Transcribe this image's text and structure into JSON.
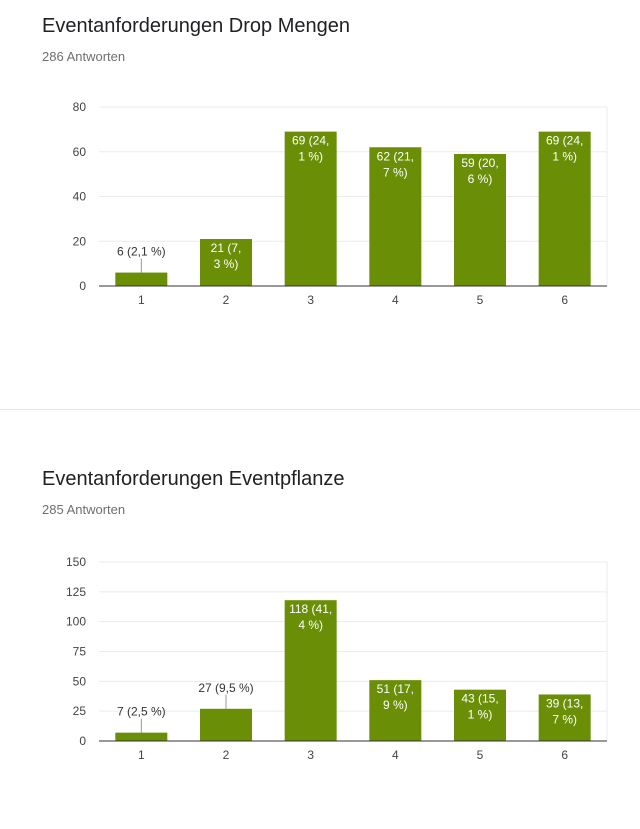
{
  "charts": [
    {
      "title": "Eventanforderungen Drop Mengen",
      "responses": "286 Antworten"
    },
    {
      "title": "Eventanforderungen Eventpflanze",
      "responses": "285 Antworten"
    }
  ],
  "colors": {
    "bar": "#6a8f06",
    "grid": "#ebebeb",
    "axis": "#333333"
  },
  "chart_data": [
    {
      "type": "bar",
      "title": "Eventanforderungen Drop Mengen",
      "subtitle": "286 Antworten",
      "categories": [
        "1",
        "2",
        "3",
        "4",
        "5",
        "6"
      ],
      "values": [
        6,
        21,
        69,
        62,
        59,
        69
      ],
      "data_labels": [
        [
          "6 (2,1 %)"
        ],
        [
          "21 (7,",
          "3 %)"
        ],
        [
          "69 (24,",
          "1 %)"
        ],
        [
          "62 (21,",
          "7 %)"
        ],
        [
          "59 (20,",
          "6 %)"
        ],
        [
          "69 (24,",
          "1 %)"
        ]
      ],
      "label_inside": [
        false,
        true,
        true,
        true,
        true,
        true
      ],
      "ylim": [
        0,
        80
      ],
      "yticks": [
        0,
        20,
        40,
        60,
        80
      ],
      "grid": true,
      "xlabel": "",
      "ylabel": ""
    },
    {
      "type": "bar",
      "title": "Eventanforderungen Eventpflanze",
      "subtitle": "285 Antworten",
      "categories": [
        "1",
        "2",
        "3",
        "4",
        "5",
        "6"
      ],
      "values": [
        7,
        27,
        118,
        51,
        43,
        39
      ],
      "data_labels": [
        [
          "7 (2,5 %)"
        ],
        [
          "27 (9,5 %)"
        ],
        [
          "118 (41,",
          "4 %)"
        ],
        [
          "51 (17,",
          "9 %)"
        ],
        [
          "43 (15,",
          "1 %)"
        ],
        [
          "39 (13,",
          "7 %)"
        ]
      ],
      "label_inside": [
        false,
        false,
        true,
        true,
        true,
        true
      ],
      "ylim": [
        0,
        150
      ],
      "yticks": [
        0,
        25,
        50,
        75,
        100,
        125,
        150
      ],
      "grid": true,
      "xlabel": "",
      "ylabel": ""
    }
  ]
}
